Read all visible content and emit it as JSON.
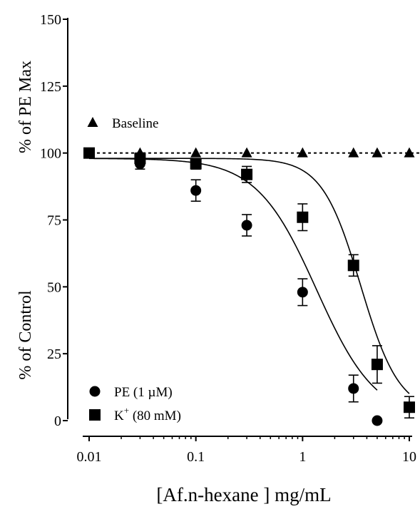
{
  "chart_data": {
    "type": "scatter",
    "title": "",
    "xlabel": "[Af.n-hexane ] mg/mL",
    "ylabel_lower": "% of Control",
    "ylabel_upper": "% of PE  Max",
    "x_scale": "log",
    "xlim": [
      0.01,
      10
    ],
    "ylim": [
      0,
      150
    ],
    "x_ticks": [
      0.01,
      0.1,
      1,
      10
    ],
    "x_tick_labels": [
      "0.01",
      "0.1",
      "1",
      "10"
    ],
    "y_ticks": [
      0,
      25,
      50,
      75,
      100,
      125,
      150
    ],
    "y_tick_labels": [
      "0",
      "25",
      "50",
      "75",
      "100",
      "125",
      "150"
    ],
    "grid": false,
    "reference_line": {
      "y": 100,
      "style": "dashed"
    },
    "series": [
      {
        "name": "Baseline",
        "marker": "triangle",
        "x": [
          0.01,
          0.03,
          0.1,
          0.3,
          1,
          3,
          5,
          10
        ],
        "y": [
          100,
          100,
          100,
          100,
          100,
          100,
          100,
          100
        ],
        "err": [
          0,
          0,
          0,
          0,
          0,
          0,
          0,
          0
        ]
      },
      {
        "name": "PE (1 µM)",
        "marker": "circle",
        "x": [
          0.01,
          0.03,
          0.1,
          0.3,
          1,
          3,
          5
        ],
        "y": [
          100,
          96,
          86,
          73,
          48,
          12,
          0
        ],
        "err": [
          0,
          2,
          4,
          4,
          5,
          5,
          0
        ],
        "fit": {
          "top": 98,
          "bottom": 0,
          "ic50": 1.35,
          "hill": 1.55
        }
      },
      {
        "name": "K+ (80 mM)",
        "marker": "square",
        "x": [
          0.01,
          0.03,
          0.1,
          0.3,
          1,
          3,
          5,
          10
        ],
        "y": [
          100,
          98,
          96,
          92,
          76,
          58,
          21,
          5
        ],
        "err": [
          0,
          2,
          2,
          3,
          5,
          4,
          7,
          4
        ],
        "fit": {
          "top": 98,
          "bottom": 3,
          "ic50": 3.5,
          "hill": 2.4
        }
      }
    ],
    "legend": [
      {
        "name": "Baseline",
        "label": "Baseline",
        "sup": "",
        "after": "",
        "position": "top-left"
      },
      {
        "name": "PE (1 µM)",
        "label": "PE (1 µM)",
        "sup": "",
        "after": "",
        "position": "bottom-left"
      },
      {
        "name": "K+ (80 mM)",
        "label": "K",
        "sup": "+",
        "after": " (80 mM)",
        "position": "bottom-left"
      }
    ]
  }
}
